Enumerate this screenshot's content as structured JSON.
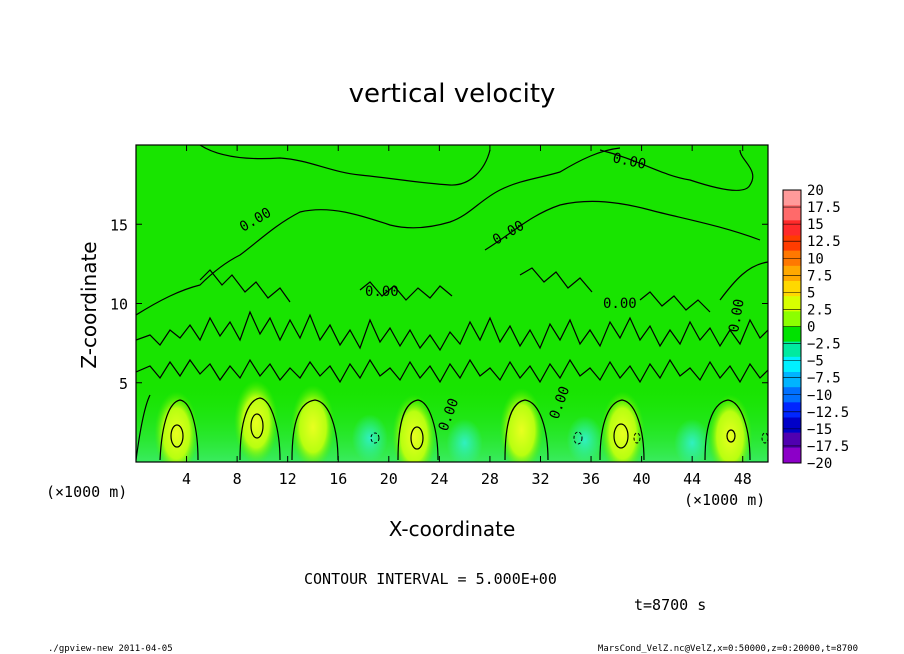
{
  "chart_data": {
    "type": "heatmap",
    "title": "vertical velocity",
    "xlabel": "X-coordinate",
    "ylabel": "Z-coordinate",
    "x_unit": "(×1000 m)",
    "y_unit": "(×1000 m)",
    "xlim": [
      0,
      50
    ],
    "ylim": [
      0,
      20
    ],
    "xticks": [
      "4",
      "8",
      "12",
      "16",
      "20",
      "24",
      "28",
      "32",
      "36",
      "40",
      "44",
      "48"
    ],
    "yticks": [
      "5",
      "10",
      "15"
    ],
    "colorbar": {
      "labels": [
        "20",
        "17.5",
        "15",
        "12.5",
        "10",
        "7.5",
        "5",
        "2.5",
        "0",
        "−2.5",
        "−5",
        "−7.5",
        "−10",
        "−12.5",
        "−15",
        "−17.5",
        "−20"
      ],
      "colors": [
        "#ff9a9a",
        "#ff6a6a",
        "#ff2a2a",
        "#ff3c00",
        "#ff7800",
        "#ffa800",
        "#ffd800",
        "#d8ff00",
        "#8cff00",
        "#00e200",
        "#00eaa0",
        "#00f0ff",
        "#00b4ff",
        "#0070ff",
        "#0026ff",
        "#0000c8",
        "#5000b0",
        "#8c00c8"
      ]
    },
    "contour_labels": [
      "0.00",
      "0.00",
      "0.00",
      "0.00",
      "0.00",
      "0.00",
      "0.00",
      "0.00"
    ],
    "contour_interval_text": "CONTOUR INTERVAL = 5.000E+00",
    "time_text": "t=8700 s"
  },
  "footer": {
    "left": "./gpview-new   2011-04-05",
    "right": "MarsCond_VelZ.nc@VelZ,x=0:50000,z=0:20000,t=8700"
  }
}
